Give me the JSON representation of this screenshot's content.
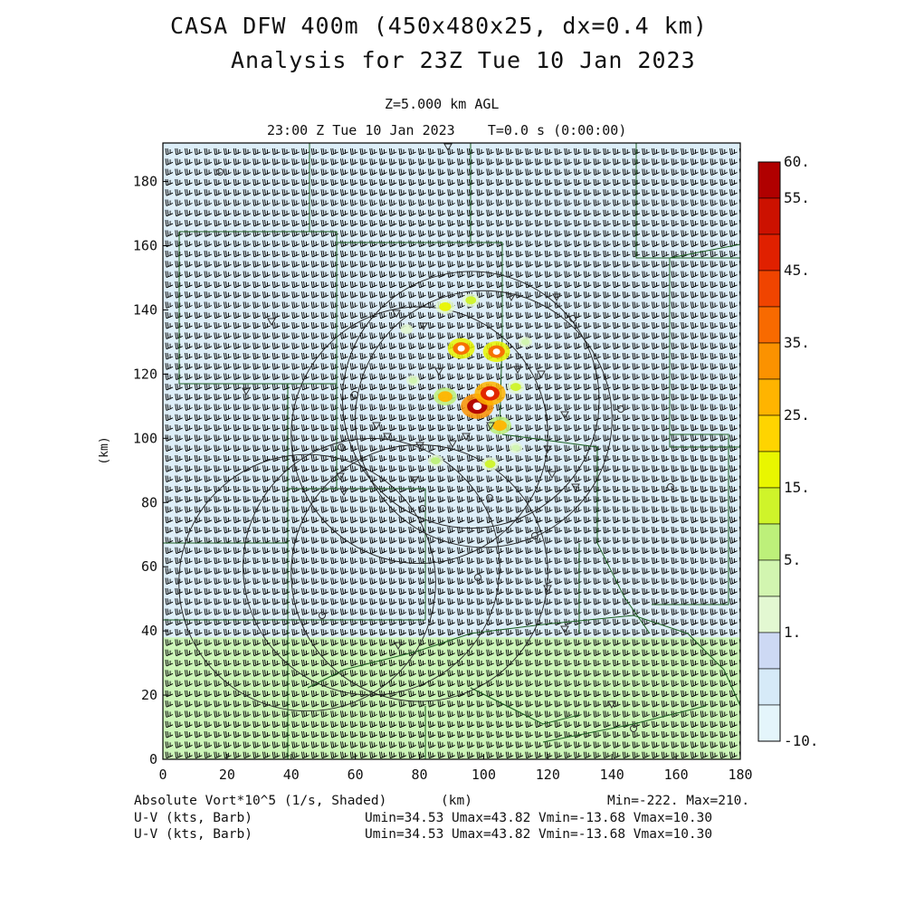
{
  "header": {
    "title_line1": "CASA DFW 400m (450x480x25, dx=0.4 km)",
    "title_line2": "Analysis for 23Z Tue 10 Jan 2023",
    "level": "Z=5.000 km AGL",
    "time": "23:00 Z Tue 10 Jan 2023    T=0.0 s (0:00:00)"
  },
  "chart_data": {
    "type": "heatmap",
    "xlabel": "(km)",
    "ylabel": "(km)",
    "xlim": [
      0,
      180
    ],
    "ylim": [
      0,
      192
    ],
    "x_ticks": [
      "0",
      "20",
      "40",
      "60",
      "80",
      "100",
      "120",
      "140",
      "160",
      "180"
    ],
    "y_ticks": [
      "0",
      "20",
      "40",
      "60",
      "80",
      "100",
      "120",
      "140",
      "160",
      "180"
    ],
    "field": "Absolute Vort*10^5 (1/s, Shaded)",
    "min": -222,
    "max": 210,
    "background_bands": [
      {
        "y_from": 0,
        "y_to": 38,
        "level": "5-10",
        "color": "#ccf5b8"
      },
      {
        "y_from": 38,
        "y_to": 192,
        "level": "-10-1",
        "color": "#ddeef8"
      }
    ],
    "colorbar": {
      "labels": [
        "60.",
        "55.",
        "45.",
        "35.",
        "25.",
        "15.",
        "5.",
        "1.",
        "-10."
      ],
      "colors": [
        "#b00000",
        "#cc1100",
        "#e02000",
        "#f04400",
        "#f86a00",
        "#fb9200",
        "#ffb400",
        "#ffd400",
        "#e9f600",
        "#cff42a",
        "#bdf07a",
        "#d2f5b0",
        "#e3f8d2",
        "#cdd9f4",
        "#d6eaf8",
        "#e4f5fb"
      ]
    },
    "wind_barbs": {
      "field": "U-V (kts, Barb)",
      "umin": 34.53,
      "umax": 43.82,
      "vmin": -13.68,
      "vmax": 10.3
    },
    "radars": [
      {
        "x": 80,
        "y": 101,
        "range_km": 40
      },
      {
        "x": 100,
        "y": 106,
        "range_km": 40
      },
      {
        "x": 65,
        "y": 60,
        "range_km": 40
      },
      {
        "x": 45,
        "y": 55,
        "range_km": 40
      },
      {
        "x": 80,
        "y": 58,
        "range_km": 40
      },
      {
        "x": 96,
        "y": 112,
        "range_km": 40
      }
    ],
    "vorticity_cells": [
      {
        "x": 98,
        "y": 110,
        "value": 60
      },
      {
        "x": 102,
        "y": 114,
        "value": 55
      },
      {
        "x": 93,
        "y": 128,
        "value": 45
      },
      {
        "x": 104,
        "y": 127,
        "value": 45
      },
      {
        "x": 88,
        "y": 113,
        "value": 35
      },
      {
        "x": 105,
        "y": 104,
        "value": 35
      },
      {
        "x": 88,
        "y": 141,
        "value": 25
      },
      {
        "x": 96,
        "y": 143,
        "value": 20
      },
      {
        "x": 110,
        "y": 116,
        "value": 20
      },
      {
        "x": 78,
        "y": 118,
        "value": 10
      },
      {
        "x": 113,
        "y": 130,
        "value": 10
      },
      {
        "x": 85,
        "y": 93,
        "value": 15
      },
      {
        "x": 102,
        "y": 92,
        "value": 20
      },
      {
        "x": 76,
        "y": 134,
        "value": 8
      },
      {
        "x": 110,
        "y": 97,
        "value": 10
      }
    ]
  },
  "footer": {
    "field_label": "Absolute Vort*10^5 (1/s, Shaded)",
    "x_unit": "(km)",
    "minmax": "Min=-222. Max=210.",
    "barb_label_1": "U-V (kts, Barb)",
    "barb_stats_1": "Umin=34.53 Umax=43.82 Vmin=-13.68 Vmax=10.30",
    "barb_label_2": "U-V (kts, Barb)",
    "barb_stats_2": "Umin=34.53 Umax=43.82 Vmin=-13.68 Vmax=10.30"
  }
}
